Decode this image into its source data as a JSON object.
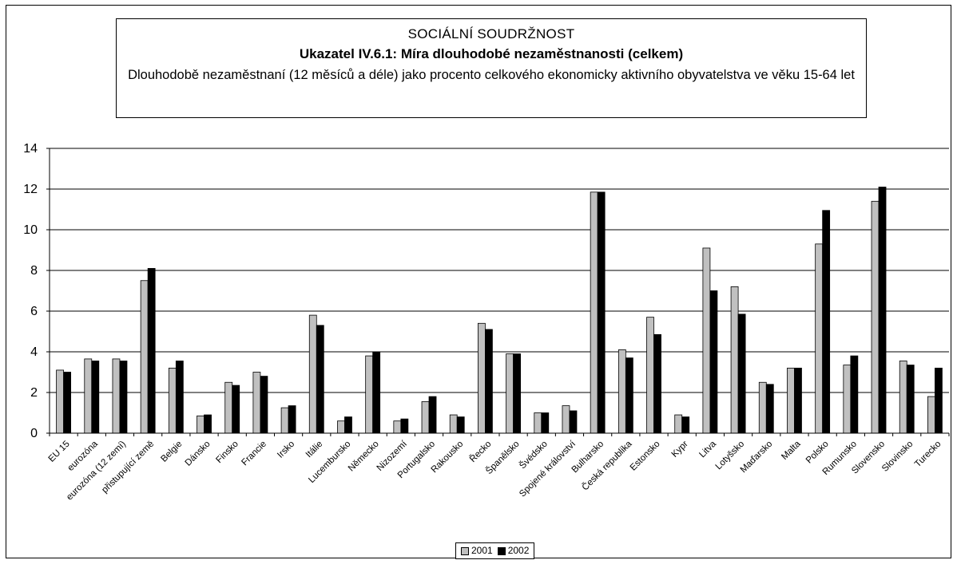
{
  "header": {
    "line1": "SOCIÁLNÍ SOUDRŽNOST",
    "line2": "Ukazatel IV.6.1: Míra dlouhodobé nezaměstnanosti (celkem)",
    "line3": "Dlouhodobě nezaměstnaní (12 měsíců a déle) jako procento celkového ekonomicky aktivního obyvatelstva ve věku 15-64 let"
  },
  "chart_data": {
    "type": "bar",
    "title": "Ukazatel IV.6.1: Míra dlouhodobé nezaměstnanosti (celkem)",
    "xlabel": "",
    "ylabel": "",
    "ylim": [
      0,
      14
    ],
    "yticks": [
      "0",
      "2",
      "4",
      "6",
      "8",
      "10",
      "12",
      "14"
    ],
    "grid": true,
    "legend_position": "bottom",
    "categories": [
      "EU 15",
      "eurozóna",
      "eurozóna (12 zemí)",
      "přistupující země",
      "Belgie",
      "Dánsko",
      "Finsko",
      "Francie",
      "Irsko",
      "Itálie",
      "Lucembursko",
      "Německo",
      "Nizozemí",
      "Portugalsko",
      "Rakousko",
      "Řecko",
      "Španělsko",
      "Švédsko",
      "Spojené království",
      "Bulharsko",
      "Česká republika",
      "Estonsko",
      "Kypr",
      "Litva",
      "Lotyšsko",
      "Maďarsko",
      "Malta",
      "Polsko",
      "Rumunsko",
      "Slovensko",
      "Slovinsko",
      "Turecko"
    ],
    "series": [
      {
        "name": "2001",
        "color": "#c0c0c0",
        "values": [
          3.1,
          3.65,
          3.65,
          7.5,
          3.2,
          0.85,
          2.5,
          3.0,
          1.25,
          5.8,
          0.6,
          3.8,
          0.6,
          1.55,
          0.9,
          5.4,
          3.9,
          1.0,
          1.35,
          11.85,
          4.1,
          5.7,
          0.9,
          9.1,
          7.2,
          2.5,
          3.2,
          9.3,
          3.35,
          11.4,
          3.55,
          1.8
        ]
      },
      {
        "name": "2002",
        "color": "#000000",
        "values": [
          3.0,
          3.55,
          3.55,
          8.1,
          3.55,
          0.9,
          2.35,
          2.8,
          1.35,
          5.3,
          0.8,
          4.0,
          0.7,
          1.8,
          0.8,
          5.1,
          3.9,
          1.0,
          1.1,
          11.85,
          3.7,
          4.85,
          0.8,
          7.0,
          5.85,
          2.4,
          3.2,
          10.95,
          3.8,
          12.1,
          3.35,
          3.2
        ]
      }
    ]
  }
}
